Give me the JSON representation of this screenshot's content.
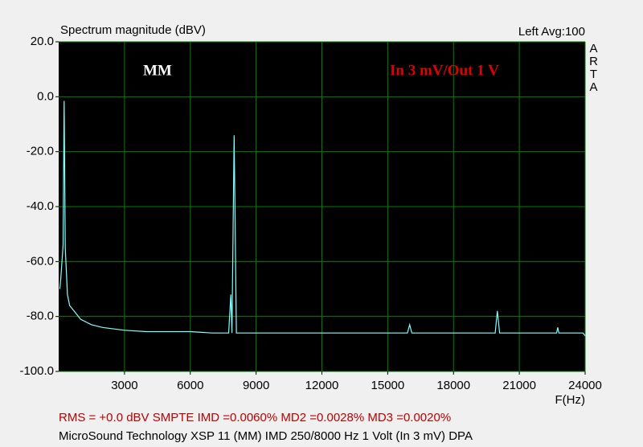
{
  "chart_data": {
    "type": "line",
    "title": "Spectrum magnitude (dBV)",
    "channel_info": "Left  Avg:100",
    "brand": "ARTA",
    "annotations": [
      "MM",
      "In 3 mV/Out 1 V"
    ],
    "x_label": "F(Hz)",
    "measurements": "RMS =   +0.0 dBV  SMPTE IMD =0.0060%  MD2 =0.0028%  MD3 =0.0020%",
    "footer": "MicroSound Technology XSP 11 (MM) IMD 250/8000 Hz 1 Volt (In 3 mV)      DPA",
    "xlim": [
      0,
      24000
    ],
    "xticks": [
      3000,
      6000,
      9000,
      12000,
      15000,
      18000,
      21000,
      24000
    ],
    "ylim": [
      -100,
      20
    ],
    "yticks": [
      {
        "value": -100,
        "label": "-100.0"
      },
      {
        "value": -80,
        "label": "-80.0"
      },
      {
        "value": -60,
        "label": "-60.0"
      },
      {
        "value": -40,
        "label": "-40.0"
      },
      {
        "value": -20,
        "label": "-20.0"
      },
      {
        "value": 0,
        "label": "0.0"
      },
      {
        "value": 20,
        "label": "20.0"
      }
    ],
    "grid": true,
    "grid_color": "#008000",
    "background": "#000000",
    "series": [
      {
        "name": "Left",
        "color": "#80ffff",
        "x": [
          50,
          100,
          150,
          200,
          250,
          300,
          400,
          500,
          700,
          1000,
          1500,
          2000,
          3000,
          4000,
          5000,
          6000,
          7000,
          7750,
          7850,
          7900,
          8000,
          8100,
          8500,
          9000,
          10000,
          12000,
          14000,
          15900,
          16000,
          16100,
          18000,
          19900,
          20000,
          20100,
          22000,
          22700,
          22750,
          22800,
          23900,
          24000
        ],
        "values": [
          -70,
          -66,
          -60,
          -54,
          -1.5,
          -55,
          -72,
          -76,
          -78,
          -81,
          -83,
          -84,
          -85,
          -85.5,
          -85.5,
          -85.5,
          -86,
          -86,
          -72,
          -86,
          -14,
          -86,
          -86,
          -86,
          -86,
          -86,
          -86,
          -86,
          -83,
          -86,
          -86,
          -86,
          -78,
          -86,
          -86,
          -86,
          -84,
          -86,
          -86,
          -87
        ]
      }
    ]
  }
}
